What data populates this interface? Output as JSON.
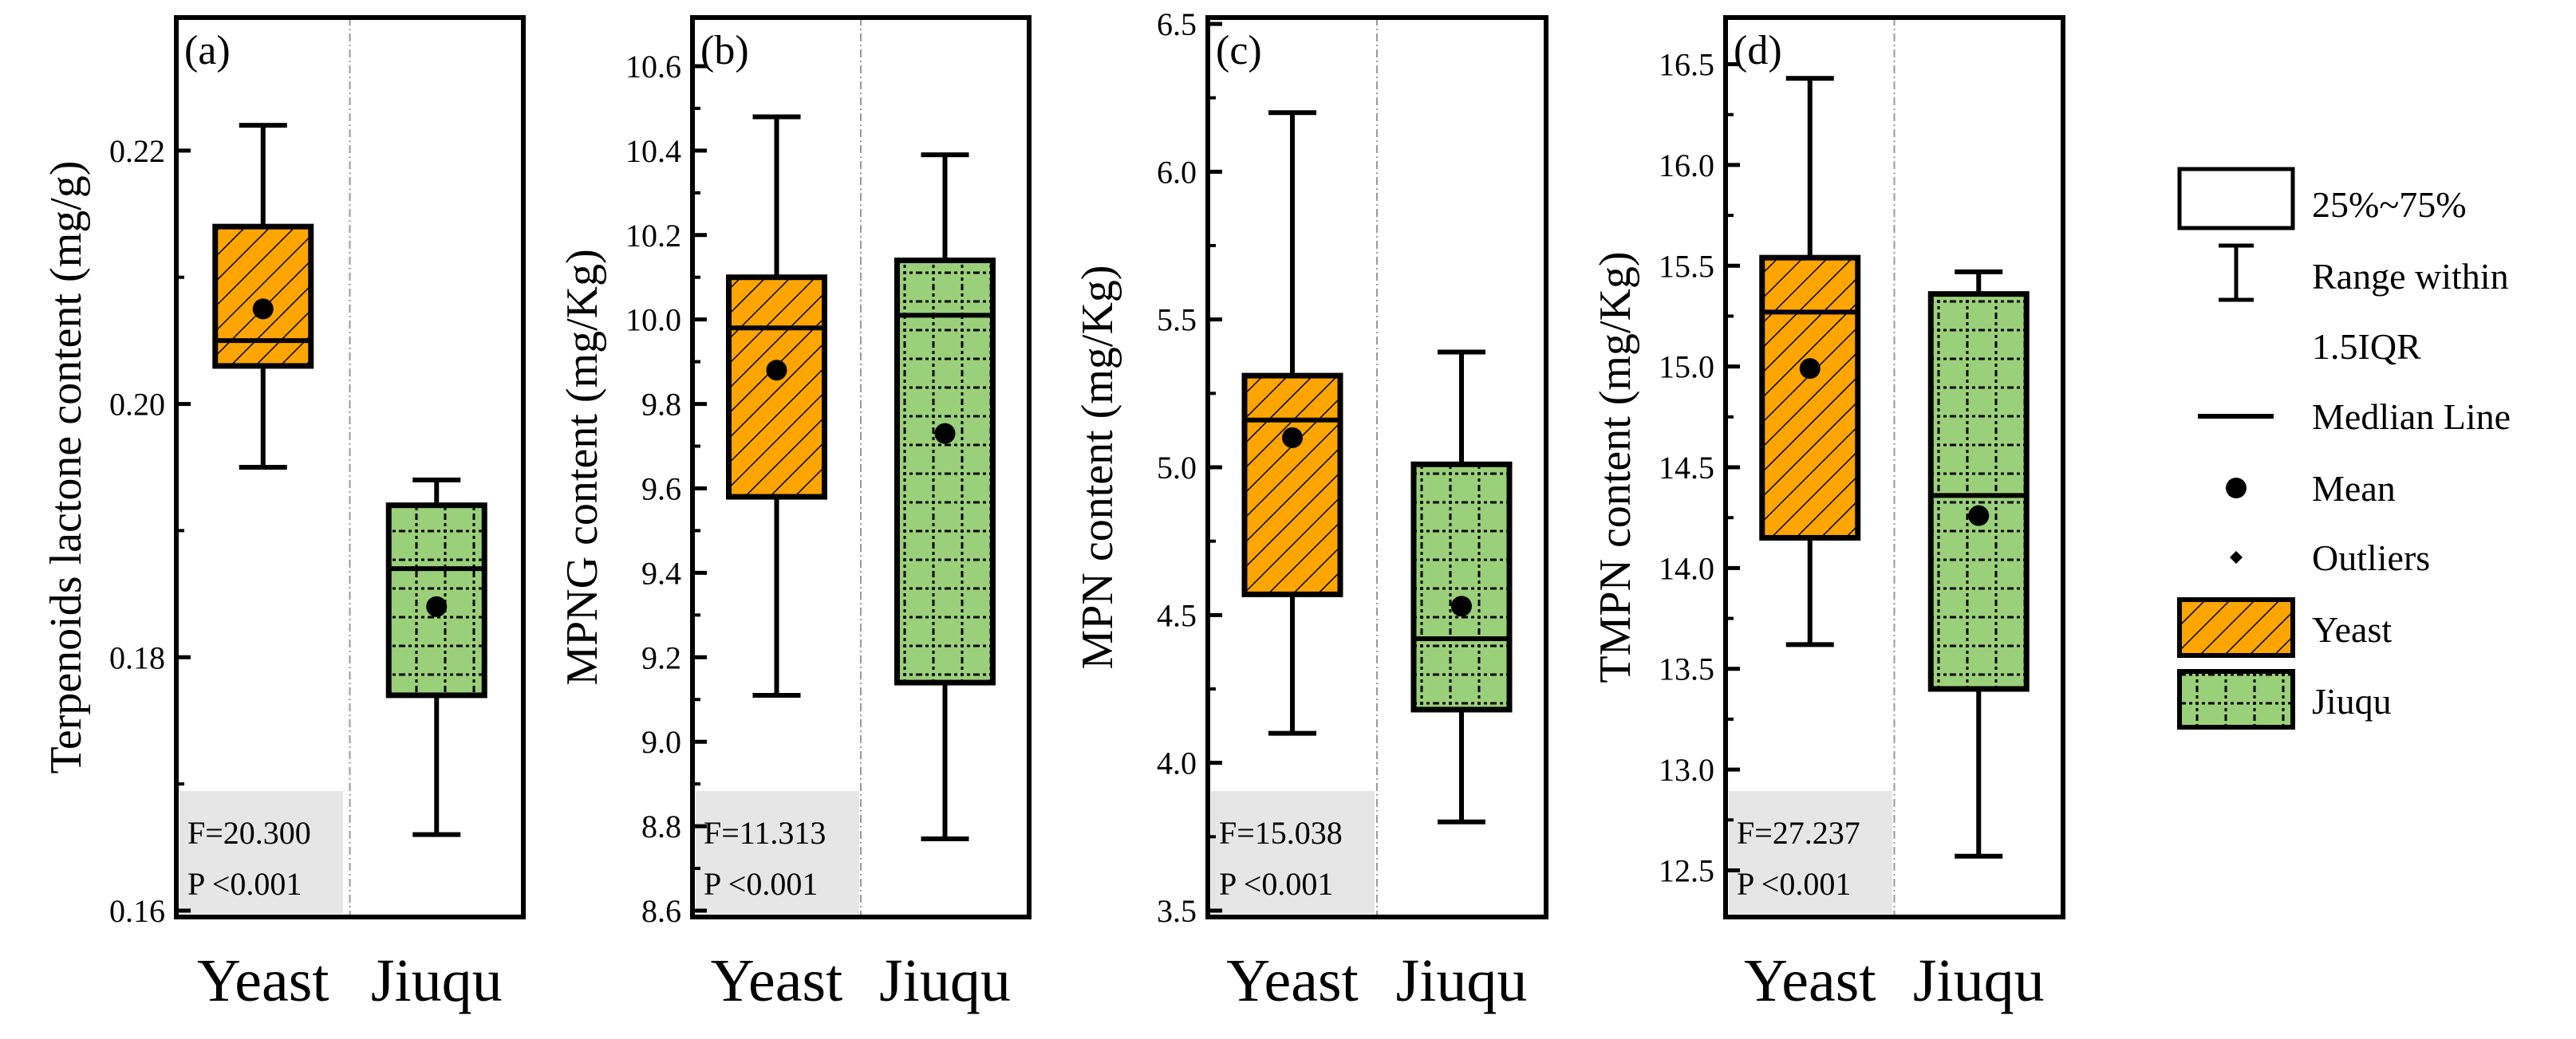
{
  "colors": {
    "yeast": "#FFA500",
    "jiuqu": "#9BD07A",
    "statbox": "#E6E6E6",
    "frame": "#000000",
    "divider": "#999999"
  },
  "chart_data": [
    {
      "type": "box",
      "panel_label": "(a)",
      "ylabel": "Terpenoids lactone content (mg/g)",
      "ylim": [
        0.16,
        0.23
      ],
      "yticks": [
        0.16,
        0.18,
        0.2,
        0.22
      ],
      "ytick_labels": [
        "0.16",
        "0.18",
        "0.20",
        "0.22"
      ],
      "categories": [
        "Yeast",
        "Jiuqu"
      ],
      "boxes": [
        {
          "name": "Yeast",
          "whisker_low": 0.195,
          "q1": 0.203,
          "median": 0.205,
          "q3": 0.214,
          "whisker_high": 0.222,
          "mean": 0.2075
        },
        {
          "name": "Jiuqu",
          "whisker_low": 0.166,
          "q1": 0.177,
          "median": 0.187,
          "q3": 0.192,
          "whisker_high": 0.194,
          "mean": 0.184
        }
      ],
      "stats": {
        "f": "F=20.300",
        "p": "P <0.001"
      }
    },
    {
      "type": "box",
      "panel_label": "(b)",
      "ylabel": "MPNG content (mg/Kg)",
      "ylim": [
        8.6,
        10.7
      ],
      "yticks": [
        8.6,
        8.8,
        9.0,
        9.2,
        9.4,
        9.6,
        9.8,
        10.0,
        10.2,
        10.4,
        10.6
      ],
      "ytick_labels": [
        "8.6",
        "8.8",
        "9.0",
        "9.2",
        "9.4",
        "9.6",
        "9.8",
        "10.0",
        "10.2",
        "10.4",
        "10.6"
      ],
      "categories": [
        "Yeast",
        "Jiuqu"
      ],
      "boxes": [
        {
          "name": "Yeast",
          "whisker_low": 9.11,
          "q1": 9.58,
          "median": 9.98,
          "q3": 10.1,
          "whisker_high": 10.48,
          "mean": 9.88
        },
        {
          "name": "Jiuqu",
          "whisker_low": 8.77,
          "q1": 9.14,
          "median": 10.01,
          "q3": 10.14,
          "whisker_high": 10.39,
          "mean": 9.73
        }
      ],
      "stats": {
        "f": "F=11.313",
        "p": "P <0.001"
      }
    },
    {
      "type": "box",
      "panel_label": "(c)",
      "ylabel": "MPN content (mg/Kg)",
      "ylim": [
        3.5,
        6.5
      ],
      "yticks": [
        3.5,
        4.0,
        4.5,
        5.0,
        5.5,
        6.0,
        6.5
      ],
      "ytick_labels": [
        "3.5",
        "4.0",
        "4.5",
        "5.0",
        "5.5",
        "6.0",
        "6.5"
      ],
      "categories": [
        "Yeast",
        "Jiuqu"
      ],
      "boxes": [
        {
          "name": "Yeast",
          "whisker_low": 4.1,
          "q1": 4.57,
          "median": 5.16,
          "q3": 5.31,
          "whisker_high": 6.2,
          "mean": 5.1
        },
        {
          "name": "Jiuqu",
          "whisker_low": 3.8,
          "q1": 4.18,
          "median": 4.42,
          "q3": 5.01,
          "whisker_high": 5.39,
          "mean": 4.53
        }
      ],
      "stats": {
        "f": "F=15.038",
        "p": "P <0.001"
      }
    },
    {
      "type": "box",
      "panel_label": "(d)",
      "ylabel": "TMPN content (mg/Kg)",
      "ylim": [
        12.3,
        16.7
      ],
      "yticks": [
        12.5,
        13.0,
        13.5,
        14.0,
        14.5,
        15.0,
        15.5,
        16.0,
        16.5
      ],
      "ytick_labels": [
        "12.5",
        "13.0",
        "13.5",
        "14.0",
        "14.5",
        "15.0",
        "15.5",
        "16.0",
        "16.5"
      ],
      "categories": [
        "Yeast",
        "Jiuqu"
      ],
      "boxes": [
        {
          "name": "Yeast",
          "whisker_low": 13.62,
          "q1": 14.15,
          "median": 15.27,
          "q3": 15.54,
          "whisker_high": 16.43,
          "mean": 14.99
        },
        {
          "name": "Jiuqu",
          "whisker_low": 12.57,
          "q1": 13.4,
          "median": 14.36,
          "q3": 15.36,
          "whisker_high": 15.47,
          "mean": 14.26
        }
      ],
      "stats": {
        "f": "F=27.237",
        "p": "P <0.001"
      }
    }
  ],
  "legend": {
    "box": "25%~75%",
    "range_line1": "Range within",
    "range_line2": "1.5IQR",
    "median": "Medlian Line",
    "mean": "Mean",
    "outliers": "Outliers",
    "yeast": "Yeast",
    "jiuqu": "Jiuqu"
  }
}
